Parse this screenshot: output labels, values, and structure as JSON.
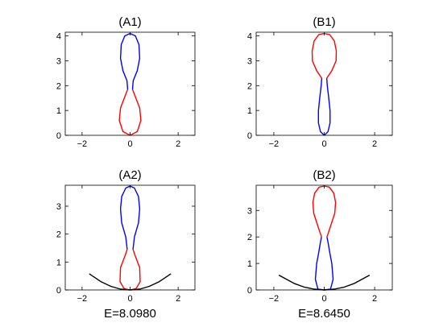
{
  "chart_data": [
    {
      "type": "line",
      "title": "(A1)",
      "caption": "",
      "xlim": [
        -2.7,
        2.7
      ],
      "ylim": [
        0,
        4.15
      ],
      "xticks": [
        -2,
        0,
        2
      ],
      "yticks": [
        0,
        1,
        2,
        3,
        4
      ],
      "grid": false,
      "series": [
        {
          "color": "#ff0000",
          "r": [
            0,
            0.3,
            0.45,
            0.4,
            0.22,
            0.1
          ],
          "z": [
            0,
            0.15,
            0.6,
            1.1,
            1.55,
            1.85
          ]
        },
        {
          "color": "#0000ff",
          "r": [
            0.1,
            0.13,
            0.3,
            0.4,
            0.37,
            0.22,
            0
          ],
          "z": [
            1.85,
            2.2,
            2.6,
            3.1,
            3.65,
            4.0,
            4.1
          ]
        }
      ]
    },
    {
      "type": "line",
      "title": "(B1)",
      "caption": "",
      "xlim": [
        -2.7,
        2.7
      ],
      "ylim": [
        0,
        4.15
      ],
      "xticks": [
        -2,
        0,
        2
      ],
      "yticks": [
        0,
        1,
        2,
        3,
        4
      ],
      "grid": false,
      "series": [
        {
          "color": "#0000ff",
          "r": [
            0,
            0.15,
            0.23,
            0.23,
            0.18,
            0.12,
            0.1
          ],
          "z": [
            0,
            0.15,
            0.5,
            1.0,
            1.5,
            2.0,
            2.3
          ]
        },
        {
          "color": "#ff0000",
          "r": [
            0.1,
            0.3,
            0.47,
            0.48,
            0.4,
            0.22,
            0
          ],
          "z": [
            2.3,
            2.6,
            3.0,
            3.4,
            3.8,
            4.05,
            4.1
          ]
        }
      ]
    },
    {
      "type": "line",
      "title": "(A2)",
      "caption": "E=8.0980",
      "xlim": [
        -2.7,
        2.7
      ],
      "ylim": [
        0,
        3.75
      ],
      "xticks": [
        -2,
        0,
        2
      ],
      "yticks": [
        0,
        1,
        2,
        3
      ],
      "grid": false,
      "series": [
        {
          "color": "#ff0000",
          "r": [
            0,
            0.25,
            0.42,
            0.4,
            0.22,
            0.12
          ],
          "z": [
            0,
            0.05,
            0.3,
            0.8,
            1.2,
            1.45
          ]
        },
        {
          "color": "#0000ff",
          "r": [
            0.12,
            0.18,
            0.35,
            0.4,
            0.35,
            0.18,
            0
          ],
          "z": [
            1.45,
            1.9,
            2.4,
            2.9,
            3.35,
            3.65,
            3.72
          ]
        },
        {
          "color": "#000000",
          "mirror": false,
          "r": [
            -1.7,
            -1.2,
            -0.8,
            -0.4,
            0,
            0.4,
            0.8,
            1.2,
            1.7
          ],
          "z": [
            0.58,
            0.29,
            0.13,
            0.03,
            0,
            0.03,
            0.13,
            0.29,
            0.58
          ]
        }
      ]
    },
    {
      "type": "line",
      "title": "(B2)",
      "caption": "E=8.6450",
      "xlim": [
        -2.7,
        2.7
      ],
      "ylim": [
        0,
        3.95
      ],
      "xticks": [
        -2,
        0,
        2
      ],
      "yticks": [
        0,
        1,
        2,
        3
      ],
      "grid": false,
      "series": [
        {
          "color": "#0000ff",
          "r": [
            0,
            0.25,
            0.35,
            0.3,
            0.22,
            0.15,
            0.11
          ],
          "z": [
            0,
            0.03,
            0.4,
            1.0,
            1.4,
            1.8,
            2.0
          ]
        },
        {
          "color": "#ff0000",
          "r": [
            0.11,
            0.25,
            0.42,
            0.45,
            0.38,
            0.2,
            0
          ],
          "z": [
            2.0,
            2.4,
            2.9,
            3.3,
            3.65,
            3.88,
            3.92
          ]
        },
        {
          "color": "#000000",
          "mirror": false,
          "r": [
            -1.8,
            -1.2,
            -0.8,
            -0.4,
            0,
            0.4,
            0.8,
            1.2,
            1.8
          ],
          "z": [
            0.56,
            0.25,
            0.11,
            0.03,
            0,
            0.03,
            0.11,
            0.25,
            0.56
          ]
        }
      ]
    }
  ]
}
